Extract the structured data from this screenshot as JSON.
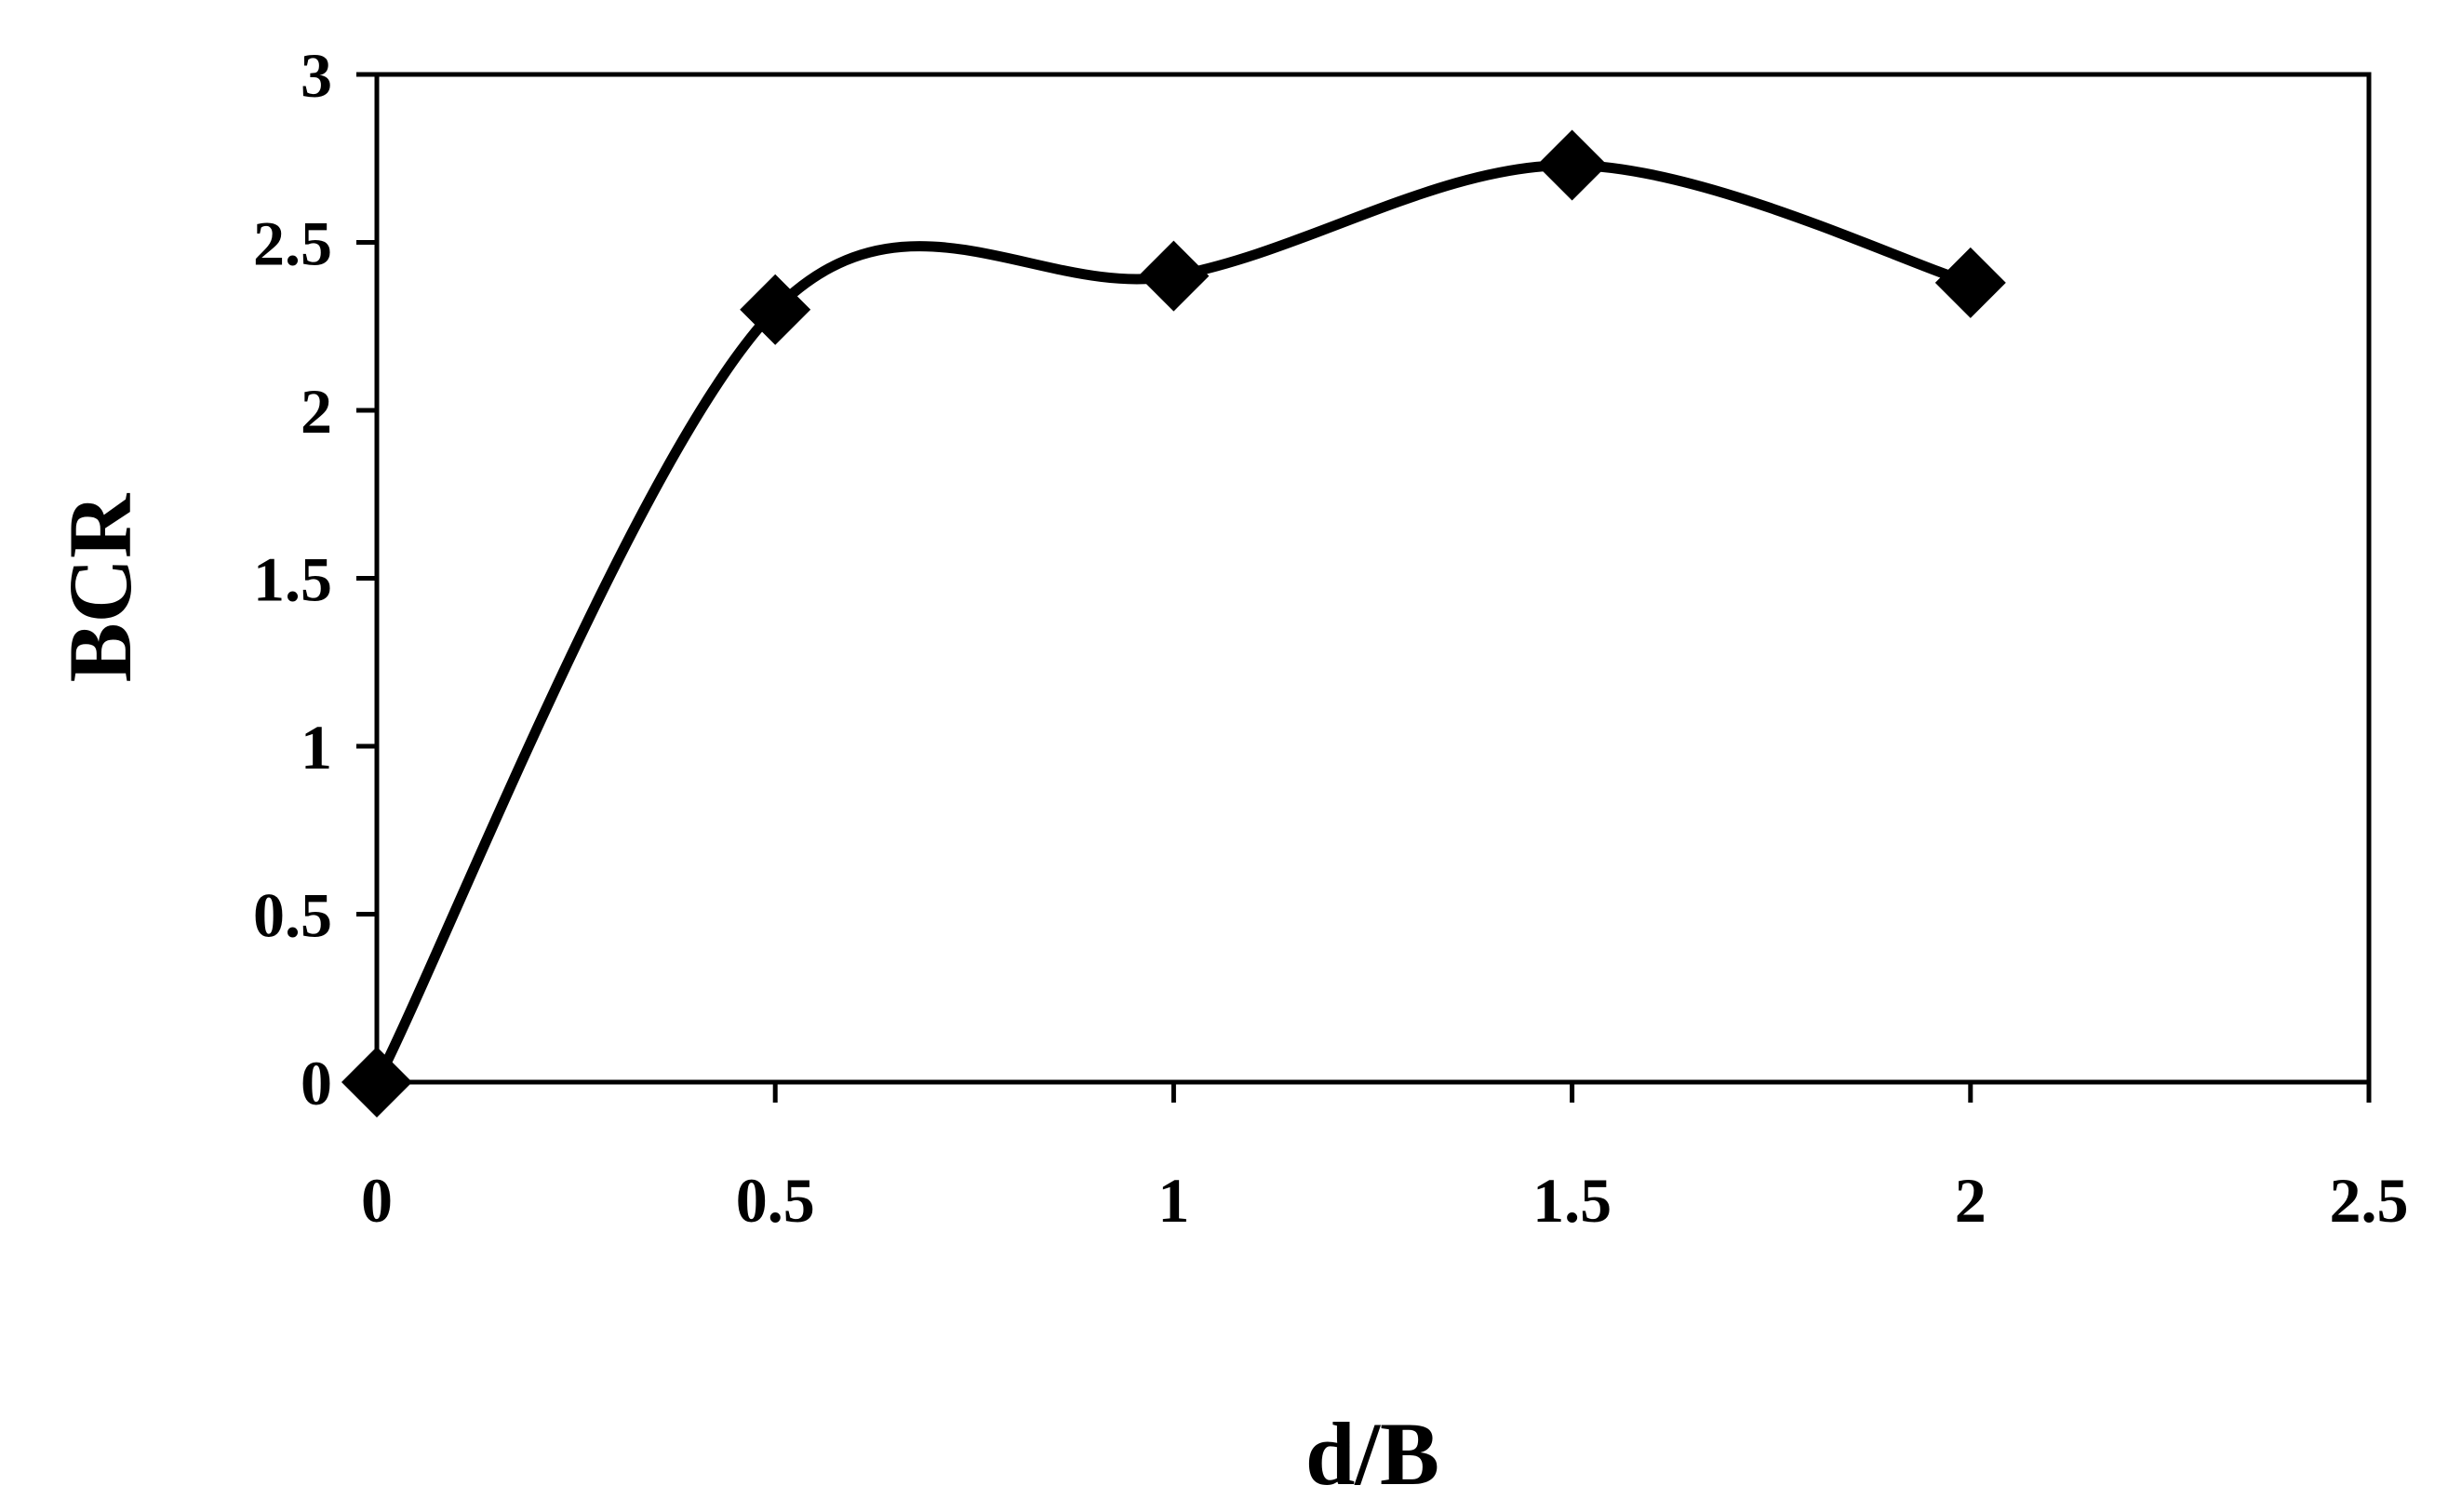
{
  "chart_data": {
    "type": "line",
    "xlabel": "d/B",
    "ylabel": "BCR",
    "xlim": [
      0,
      2.5
    ],
    "ylim": [
      0,
      3
    ],
    "x_ticks": [
      "0",
      "0.5",
      "1",
      "1.5",
      "2",
      "2.5"
    ],
    "y_ticks": [
      "0",
      "0.5",
      "1",
      "1.5",
      "2",
      "2.5",
      "3"
    ],
    "smooth": true,
    "marker": "diamond",
    "grid": false,
    "series": [
      {
        "x": [
          0,
          0.5,
          1,
          1.5,
          2
        ],
        "y": [
          0,
          2.3,
          2.4,
          2.73,
          2.38
        ]
      }
    ]
  }
}
